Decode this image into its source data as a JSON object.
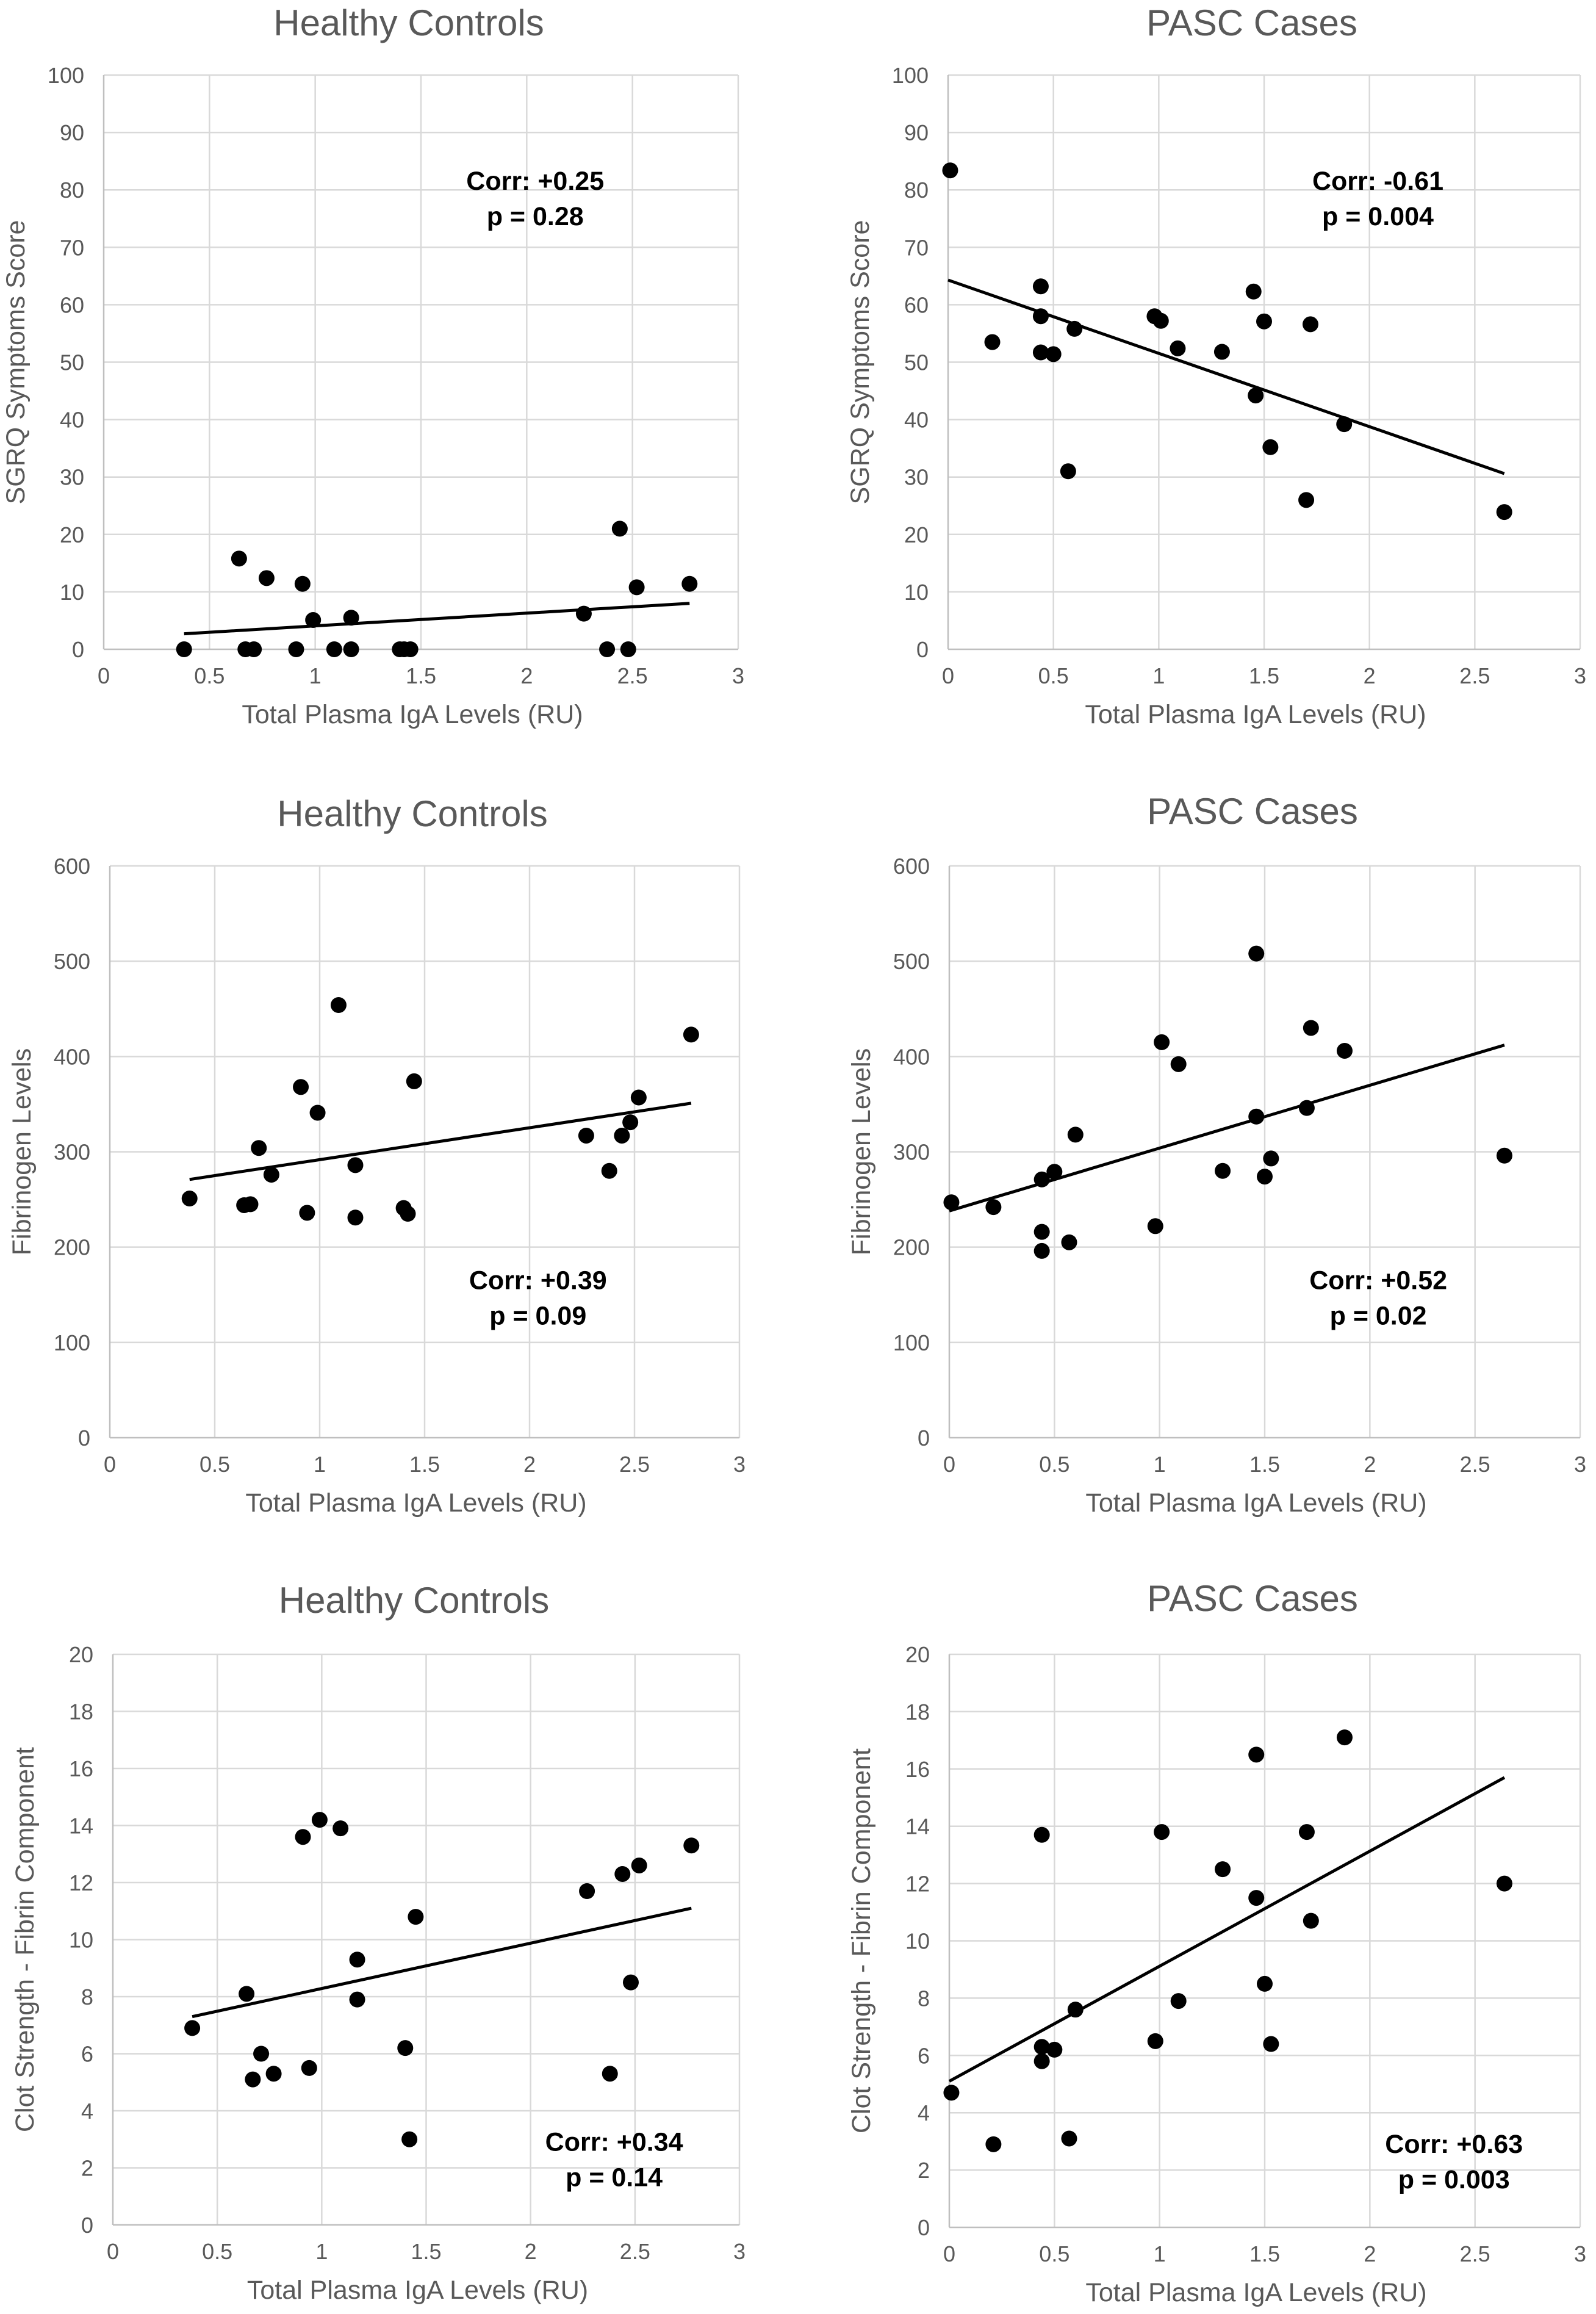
{
  "chart_data": [
    {
      "type": "scatter",
      "title": "Healthy Controls",
      "xlabel": "Total Plasma IgA Levels (RU)",
      "ylabel": "SGRQ Symptoms Score",
      "xlim": [
        0,
        3
      ],
      "ylim": [
        0,
        100
      ],
      "xticks": [
        0,
        0.5,
        1,
        1.5,
        2,
        2.5,
        3
      ],
      "xtick_labels": [
        "0",
        "0.5",
        "1",
        "1.5",
        "2",
        "2.5",
        "3"
      ],
      "yticks": [
        0,
        10,
        20,
        30,
        40,
        50,
        60,
        70,
        80,
        90,
        100
      ],
      "ytick_labels": [
        "0",
        "10",
        "20",
        "30",
        "40",
        "50",
        "60",
        "70",
        "80",
        "90",
        "100"
      ],
      "points": [
        [
          0.38,
          0
        ],
        [
          0.64,
          15.8
        ],
        [
          0.67,
          0
        ],
        [
          0.71,
          0
        ],
        [
          0.77,
          12.4
        ],
        [
          0.91,
          0
        ],
        [
          0.94,
          11.4
        ],
        [
          0.99,
          5.1
        ],
        [
          1.09,
          0
        ],
        [
          1.17,
          5.5
        ],
        [
          1.17,
          0
        ],
        [
          1.4,
          0
        ],
        [
          1.42,
          0
        ],
        [
          1.45,
          0
        ],
        [
          2.27,
          6.2
        ],
        [
          2.38,
          0
        ],
        [
          2.44,
          21
        ],
        [
          2.48,
          0
        ],
        [
          2.52,
          10.8
        ],
        [
          2.77,
          11.4
        ]
      ],
      "trendline": [
        [
          0.38,
          2.7
        ],
        [
          2.77,
          8.0
        ]
      ],
      "annotation": [
        "Corr: +0.25",
        "p = 0.28"
      ],
      "annotation_position": "top-right"
    },
    {
      "type": "scatter",
      "title": "PASC Cases",
      "xlabel": "Total Plasma IgA Levels (RU)",
      "ylabel": "SGRQ Symptoms Score",
      "xlim": [
        0,
        3
      ],
      "ylim": [
        0,
        100
      ],
      "xticks": [
        0,
        0.5,
        1,
        1.5,
        2,
        2.5,
        3
      ],
      "xtick_labels": [
        "0",
        "0.5",
        "1",
        "1.5",
        "2",
        "2.5",
        "3"
      ],
      "yticks": [
        0,
        10,
        20,
        30,
        40,
        50,
        60,
        70,
        80,
        90,
        100
      ],
      "ytick_labels": [
        "0",
        "10",
        "20",
        "30",
        "40",
        "50",
        "60",
        "70",
        "80",
        "90",
        "100"
      ],
      "points": [
        [
          0.01,
          83.4
        ],
        [
          0.21,
          53.5
        ],
        [
          0.44,
          63.2
        ],
        [
          0.44,
          58
        ],
        [
          0.44,
          51.7
        ],
        [
          0.5,
          51.4
        ],
        [
          0.57,
          31
        ],
        [
          0.6,
          55.8
        ],
        [
          0.98,
          58
        ],
        [
          1.01,
          57.2
        ],
        [
          1.09,
          52.4
        ],
        [
          1.3,
          51.8
        ],
        [
          1.45,
          62.3
        ],
        [
          1.46,
          44.2
        ],
        [
          1.5,
          57.1
        ],
        [
          1.53,
          35.2
        ],
        [
          1.7,
          26
        ],
        [
          1.72,
          56.6
        ],
        [
          1.88,
          39.2
        ],
        [
          2.64,
          23.9
        ]
      ],
      "trendline": [
        [
          0.0,
          64.3
        ],
        [
          2.64,
          30.6
        ]
      ],
      "annotation": [
        "Corr: -0.61",
        "p = 0.004"
      ],
      "annotation_position": "top-right"
    },
    {
      "type": "scatter",
      "title": "Healthy Controls",
      "xlabel": "Total Plasma IgA Levels (RU)",
      "ylabel": "Fibrinogen Levels",
      "xlim": [
        0,
        3
      ],
      "ylim": [
        0,
        600
      ],
      "xticks": [
        0,
        0.5,
        1,
        1.5,
        2,
        2.5,
        3
      ],
      "xtick_labels": [
        "0",
        "0.5",
        "1",
        "1.5",
        "2",
        "2.5",
        "3"
      ],
      "yticks": [
        0,
        100,
        200,
        300,
        400,
        500,
        600
      ],
      "ytick_labels": [
        "0",
        "100",
        "200",
        "300",
        "400",
        "500",
        "600"
      ],
      "points": [
        [
          0.38,
          251
        ],
        [
          0.64,
          244
        ],
        [
          0.67,
          245
        ],
        [
          0.71,
          304
        ],
        [
          0.77,
          276
        ],
        [
          0.91,
          368
        ],
        [
          0.94,
          236
        ],
        [
          0.99,
          341
        ],
        [
          1.09,
          454
        ],
        [
          1.17,
          286
        ],
        [
          1.17,
          231
        ],
        [
          1.4,
          241
        ],
        [
          1.42,
          235
        ],
        [
          1.45,
          374
        ],
        [
          2.27,
          317
        ],
        [
          2.38,
          280
        ],
        [
          2.44,
          317
        ],
        [
          2.48,
          331
        ],
        [
          2.52,
          357
        ],
        [
          2.77,
          423
        ]
      ],
      "trendline": [
        [
          0.38,
          271
        ],
        [
          2.77,
          351
        ]
      ],
      "annotation": [
        "Corr: +0.39",
        "p = 0.09"
      ],
      "annotation_position": "bottom-right"
    },
    {
      "type": "scatter",
      "title": "PASC Cases",
      "xlabel": "Total Plasma IgA Levels (RU)",
      "ylabel": "Fibrinogen Levels",
      "xlim": [
        0,
        3
      ],
      "ylim": [
        0,
        600
      ],
      "xticks": [
        0,
        0.5,
        1,
        1.5,
        2,
        2.5,
        3
      ],
      "xtick_labels": [
        "0",
        "0.5",
        "1",
        "1.5",
        "2",
        "2.5",
        "3"
      ],
      "yticks": [
        0,
        100,
        200,
        300,
        400,
        500,
        600
      ],
      "ytick_labels": [
        "0",
        "100",
        "200",
        "300",
        "400",
        "500",
        "600"
      ],
      "points": [
        [
          0.01,
          247
        ],
        [
          0.21,
          242
        ],
        [
          0.44,
          271
        ],
        [
          0.44,
          216
        ],
        [
          0.44,
          196
        ],
        [
          0.5,
          279
        ],
        [
          0.57,
          205
        ],
        [
          0.6,
          318
        ],
        [
          0.98,
          222
        ],
        [
          1.01,
          415
        ],
        [
          1.09,
          392
        ],
        [
          1.3,
          280
        ],
        [
          1.46,
          508
        ],
        [
          1.46,
          337
        ],
        [
          1.5,
          274
        ],
        [
          1.53,
          293
        ],
        [
          1.7,
          346
        ],
        [
          1.72,
          430
        ],
        [
          1.88,
          406
        ],
        [
          2.64,
          296
        ]
      ],
      "trendline": [
        [
          0.0,
          238
        ],
        [
          2.64,
          412
        ]
      ],
      "annotation": [
        "Corr: +0.52",
        "p = 0.02"
      ],
      "annotation_position": "bottom-right"
    },
    {
      "type": "scatter",
      "title": "Healthy Controls",
      "xlabel": "Total Plasma IgA Levels (RU)",
      "ylabel": "Clot Strength - Fibrin Component",
      "xlim": [
        0,
        3
      ],
      "ylim": [
        0,
        20
      ],
      "xticks": [
        0,
        0.5,
        1,
        1.5,
        2,
        2.5,
        3
      ],
      "xtick_labels": [
        "0",
        "0.5",
        "1",
        "1.5",
        "2",
        "2.5",
        "3"
      ],
      "yticks": [
        0,
        2,
        4,
        6,
        8,
        10,
        12,
        14,
        16,
        18,
        20
      ],
      "ytick_labels": [
        "0",
        "2",
        "4",
        "6",
        "8",
        "10",
        "12",
        "14",
        "16",
        "18",
        "20"
      ],
      "points": [
        [
          0.38,
          6.9
        ],
        [
          0.64,
          8.1
        ],
        [
          0.67,
          5.1
        ],
        [
          0.71,
          6.0
        ],
        [
          0.77,
          5.3
        ],
        [
          0.91,
          13.6
        ],
        [
          0.94,
          5.5
        ],
        [
          0.99,
          14.2
        ],
        [
          1.09,
          13.9
        ],
        [
          1.17,
          9.3
        ],
        [
          1.17,
          7.9
        ],
        [
          1.4,
          6.2
        ],
        [
          1.42,
          3.0
        ],
        [
          1.45,
          10.8
        ],
        [
          2.27,
          11.7
        ],
        [
          2.38,
          5.3
        ],
        [
          2.44,
          12.3
        ],
        [
          2.48,
          8.5
        ],
        [
          2.52,
          12.6
        ],
        [
          2.77,
          13.3
        ]
      ],
      "trendline": [
        [
          0.38,
          7.3
        ],
        [
          2.77,
          11.1
        ]
      ],
      "annotation": [
        "Corr: +0.34",
        "p = 0.14"
      ],
      "annotation_position": "bottom-right"
    },
    {
      "type": "scatter",
      "title": "PASC Cases",
      "xlabel": "Total Plasma IgA Levels (RU)",
      "ylabel": "Clot Strength - Fibrin Component",
      "xlim": [
        0,
        3
      ],
      "ylim": [
        0,
        20
      ],
      "xticks": [
        0,
        0.5,
        1,
        1.5,
        2,
        2.5,
        3
      ],
      "xtick_labels": [
        "0",
        "0.5",
        "1",
        "1.5",
        "2",
        "2.5",
        "3"
      ],
      "yticks": [
        0,
        2,
        4,
        6,
        8,
        10,
        12,
        14,
        16,
        18,
        20
      ],
      "ytick_labels": [
        "0",
        "2",
        "4",
        "6",
        "8",
        "10",
        "12",
        "14",
        "16",
        "18",
        "20"
      ],
      "points": [
        [
          0.01,
          4.7
        ],
        [
          0.21,
          2.9
        ],
        [
          0.44,
          13.7
        ],
        [
          0.44,
          6.3
        ],
        [
          0.44,
          5.8
        ],
        [
          0.5,
          6.2
        ],
        [
          0.57,
          3.1
        ],
        [
          0.6,
          7.6
        ],
        [
          0.98,
          6.5
        ],
        [
          1.01,
          13.8
        ],
        [
          1.09,
          7.9
        ],
        [
          1.3,
          12.5
        ],
        [
          1.46,
          16.5
        ],
        [
          1.46,
          11.5
        ],
        [
          1.5,
          8.5
        ],
        [
          1.53,
          6.4
        ],
        [
          1.7,
          13.8
        ],
        [
          1.72,
          10.7
        ],
        [
          1.88,
          17.1
        ],
        [
          2.64,
          12.0
        ]
      ],
      "trendline": [
        [
          0.0,
          5.1
        ],
        [
          2.64,
          15.7
        ]
      ],
      "annotation": [
        "Corr: +0.63",
        "p = 0.003"
      ],
      "annotation_position": "bottom-right"
    }
  ]
}
